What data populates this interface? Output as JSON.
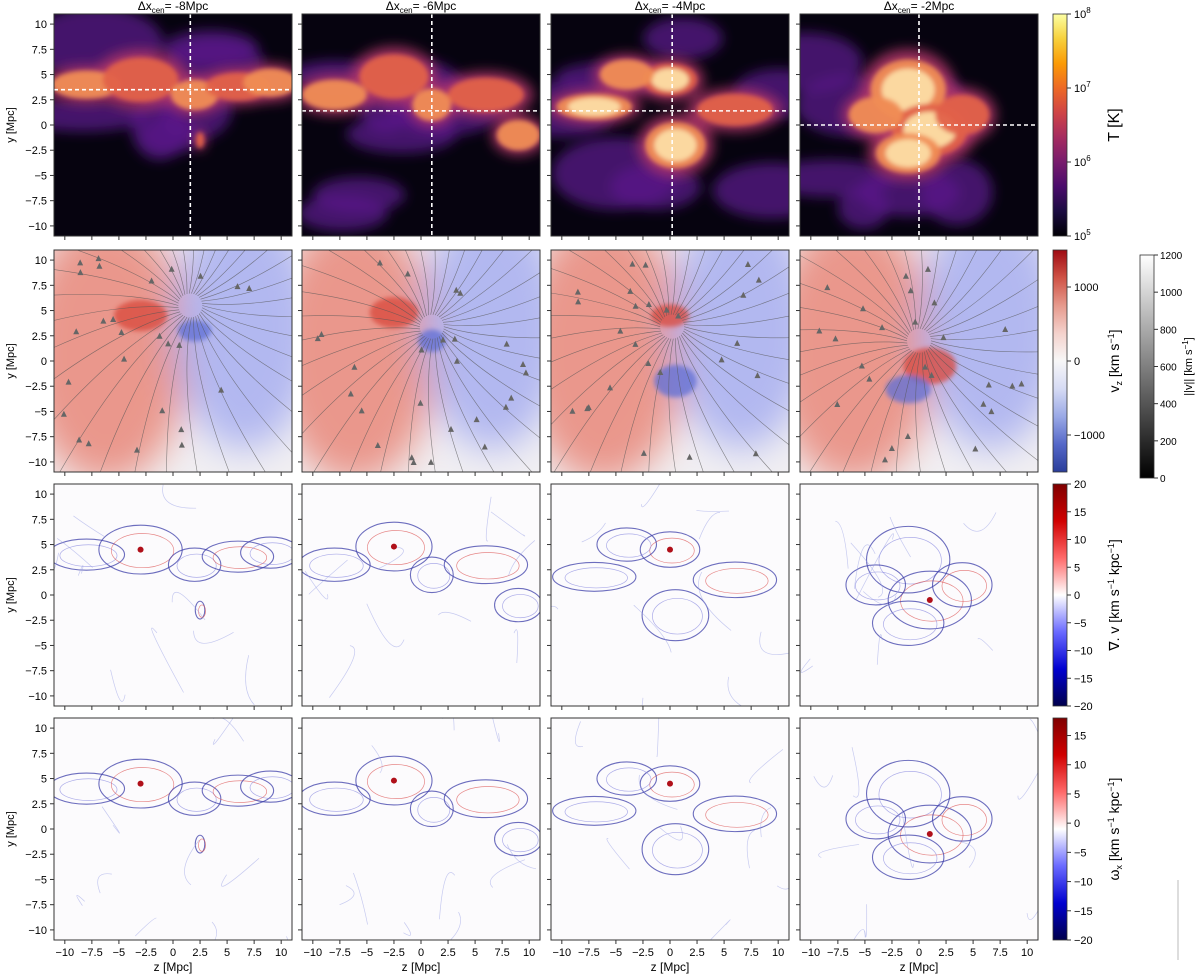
{
  "chart_data": {
    "type": "heatmap",
    "x_axis": {
      "label": "z [Mpc]",
      "range": [
        -11,
        11
      ],
      "ticks": [
        -10,
        -7.5,
        -5,
        -2.5,
        0,
        2.5,
        5,
        7.5,
        10
      ],
      "tick_labels": [
        "−10",
        "−7.5",
        "−5",
        "−2.5",
        "0",
        "2.5",
        "5",
        "7.5",
        "10"
      ]
    },
    "y_axis": {
      "label": "y [Mpc]",
      "range": [
        -11,
        11
      ],
      "ticks": [
        10,
        7.5,
        5,
        2.5,
        0,
        -2.5,
        -5,
        -7.5,
        -10
      ],
      "tick_labels": [
        "10",
        "7.5",
        "5",
        "2.5",
        "0",
        "−2.5",
        "−5",
        "−7.5",
        "−10"
      ]
    },
    "columns": [
      {
        "title": "Δx",
        "sub": "cen",
        "suffix": "= -8Mpc",
        "dx": -8,
        "cross_z": 1.6,
        "cross_y": 3.5,
        "hot": [
          [
            -8,
            4,
            3.2,
            1.4
          ],
          [
            -3,
            4.5,
            3.5,
            2.2
          ],
          [
            2,
            3,
            2.2,
            1.5
          ],
          [
            6,
            3.8,
            3,
            1.4
          ],
          [
            9,
            4.2,
            2.5,
            1.4
          ],
          [
            2.5,
            -1.5,
            0.4,
            0.8
          ]
        ]
      },
      {
        "title": "Δx",
        "sub": "cen",
        "suffix": "= -6Mpc",
        "dx": -6,
        "cross_z": 1.0,
        "cross_y": 1.4,
        "hot": [
          [
            -8,
            3,
            3,
            1.5
          ],
          [
            -2.5,
            4.8,
            3.2,
            2.2
          ],
          [
            1,
            2,
            1.8,
            1.6
          ],
          [
            6,
            3,
            3.5,
            1.7
          ],
          [
            9,
            -1,
            2,
            1.5
          ]
        ]
      },
      {
        "title": "Δx",
        "sub": "cen",
        "suffix": "= -4Mpc",
        "dx": -4,
        "cross_z": 0.2,
        "cross_y": 1.4,
        "hot": [
          [
            -7,
            1.8,
            3.5,
            1.3
          ],
          [
            0,
            4.5,
            2.5,
            1.6
          ],
          [
            0.5,
            -2,
            2.8,
            2.3
          ],
          [
            6,
            1.5,
            3.5,
            1.6
          ],
          [
            -4,
            5,
            2.5,
            1.5
          ]
        ]
      },
      {
        "title": "Δx",
        "sub": "cen",
        "suffix": "= -2Mpc",
        "dx": -2,
        "cross_z": 0.0,
        "cross_y": 0.0,
        "hot": [
          [
            -1,
            3.5,
            3.5,
            3
          ],
          [
            1,
            -0.5,
            3.5,
            2.6
          ],
          [
            -1,
            -2.8,
            3,
            2
          ],
          [
            4,
            1,
            2.5,
            2
          ],
          [
            -4,
            1,
            2.5,
            1.8
          ]
        ]
      }
    ],
    "rows": [
      {
        "quantity": "temperature",
        "colormap": "inferno",
        "colorbar": {
          "label": "T [K]",
          "scale": "log",
          "range": [
            100000,
            100000000
          ],
          "ticks": [
            {
              "value": 100000,
              "base": "10",
              "exp": "5"
            },
            {
              "value": 1000000,
              "base": "10",
              "exp": "6"
            },
            {
              "value": 10000000,
              "base": "10",
              "exp": "7"
            },
            {
              "value": 100000000,
              "base": "10",
              "exp": "8"
            }
          ]
        }
      },
      {
        "quantity": "velocity_z",
        "colormap": "RdBu_r",
        "colorbar": {
          "label": "v",
          "label_sub": "z",
          "label_tail": " [km s",
          "label_sup": "−1",
          "label_end": "]",
          "range": [
            -1500,
            1500
          ],
          "ticks": [
            {
              "value": 1000,
              "label": "1000"
            },
            {
              "value": 0,
              "label": "0"
            },
            {
              "value": -1000,
              "label": "−1000"
            }
          ]
        },
        "streamline_colorbar": {
          "label": "||v|| [km s−1]",
          "label_text": "||",
          "label_vec": "v",
          "label_tail": "|| [km s",
          "label_sup": "−1",
          "label_end": "]",
          "range": [
            0,
            1200
          ],
          "ticks": [
            {
              "value": 1200,
              "label": "1200"
            },
            {
              "value": 1000,
              "label": "1000"
            },
            {
              "value": 800,
              "label": "800"
            },
            {
              "value": 600,
              "label": "600"
            },
            {
              "value": 400,
              "label": "400"
            },
            {
              "value": 200,
              "label": "200"
            },
            {
              "value": 0,
              "label": "0"
            }
          ]
        }
      },
      {
        "quantity": "divergence",
        "colormap": "seismic",
        "colorbar": {
          "label_pre": "∇. v",
          "label_tail": " [km s",
          "label_sup": "−1",
          "label_mid": " kpc",
          "label_sup2": "−1",
          "label_end": "]",
          "range": [
            -20,
            20
          ],
          "ticks": [
            {
              "value": 20,
              "label": "20"
            },
            {
              "value": 15,
              "label": "15"
            },
            {
              "value": 10,
              "label": "10"
            },
            {
              "value": 5,
              "label": "5"
            },
            {
              "value": 0,
              "label": "0"
            },
            {
              "value": -5,
              "label": "−5"
            },
            {
              "value": -10,
              "label": "−10"
            },
            {
              "value": -15,
              "label": "−15"
            },
            {
              "value": -20,
              "label": "−20"
            }
          ]
        }
      },
      {
        "quantity": "vorticity_x",
        "colormap": "seismic",
        "colorbar": {
          "label_pre": "ω",
          "label_sub": "x",
          "label_tail": " [km s",
          "label_sup": "−1",
          "label_mid": " kpc",
          "label_sup2": "−1",
          "label_end": "]",
          "range": [
            -20,
            18
          ],
          "ticks": [
            {
              "value": 15,
              "label": "15"
            },
            {
              "value": 10,
              "label": "10"
            },
            {
              "value": 5,
              "label": "5"
            },
            {
              "value": 0,
              "label": "0"
            },
            {
              "value": -5,
              "label": "−5"
            },
            {
              "value": -10,
              "label": "−10"
            },
            {
              "value": -15,
              "label": "−15"
            },
            {
              "value": -20,
              "label": "−20"
            }
          ]
        }
      }
    ]
  }
}
